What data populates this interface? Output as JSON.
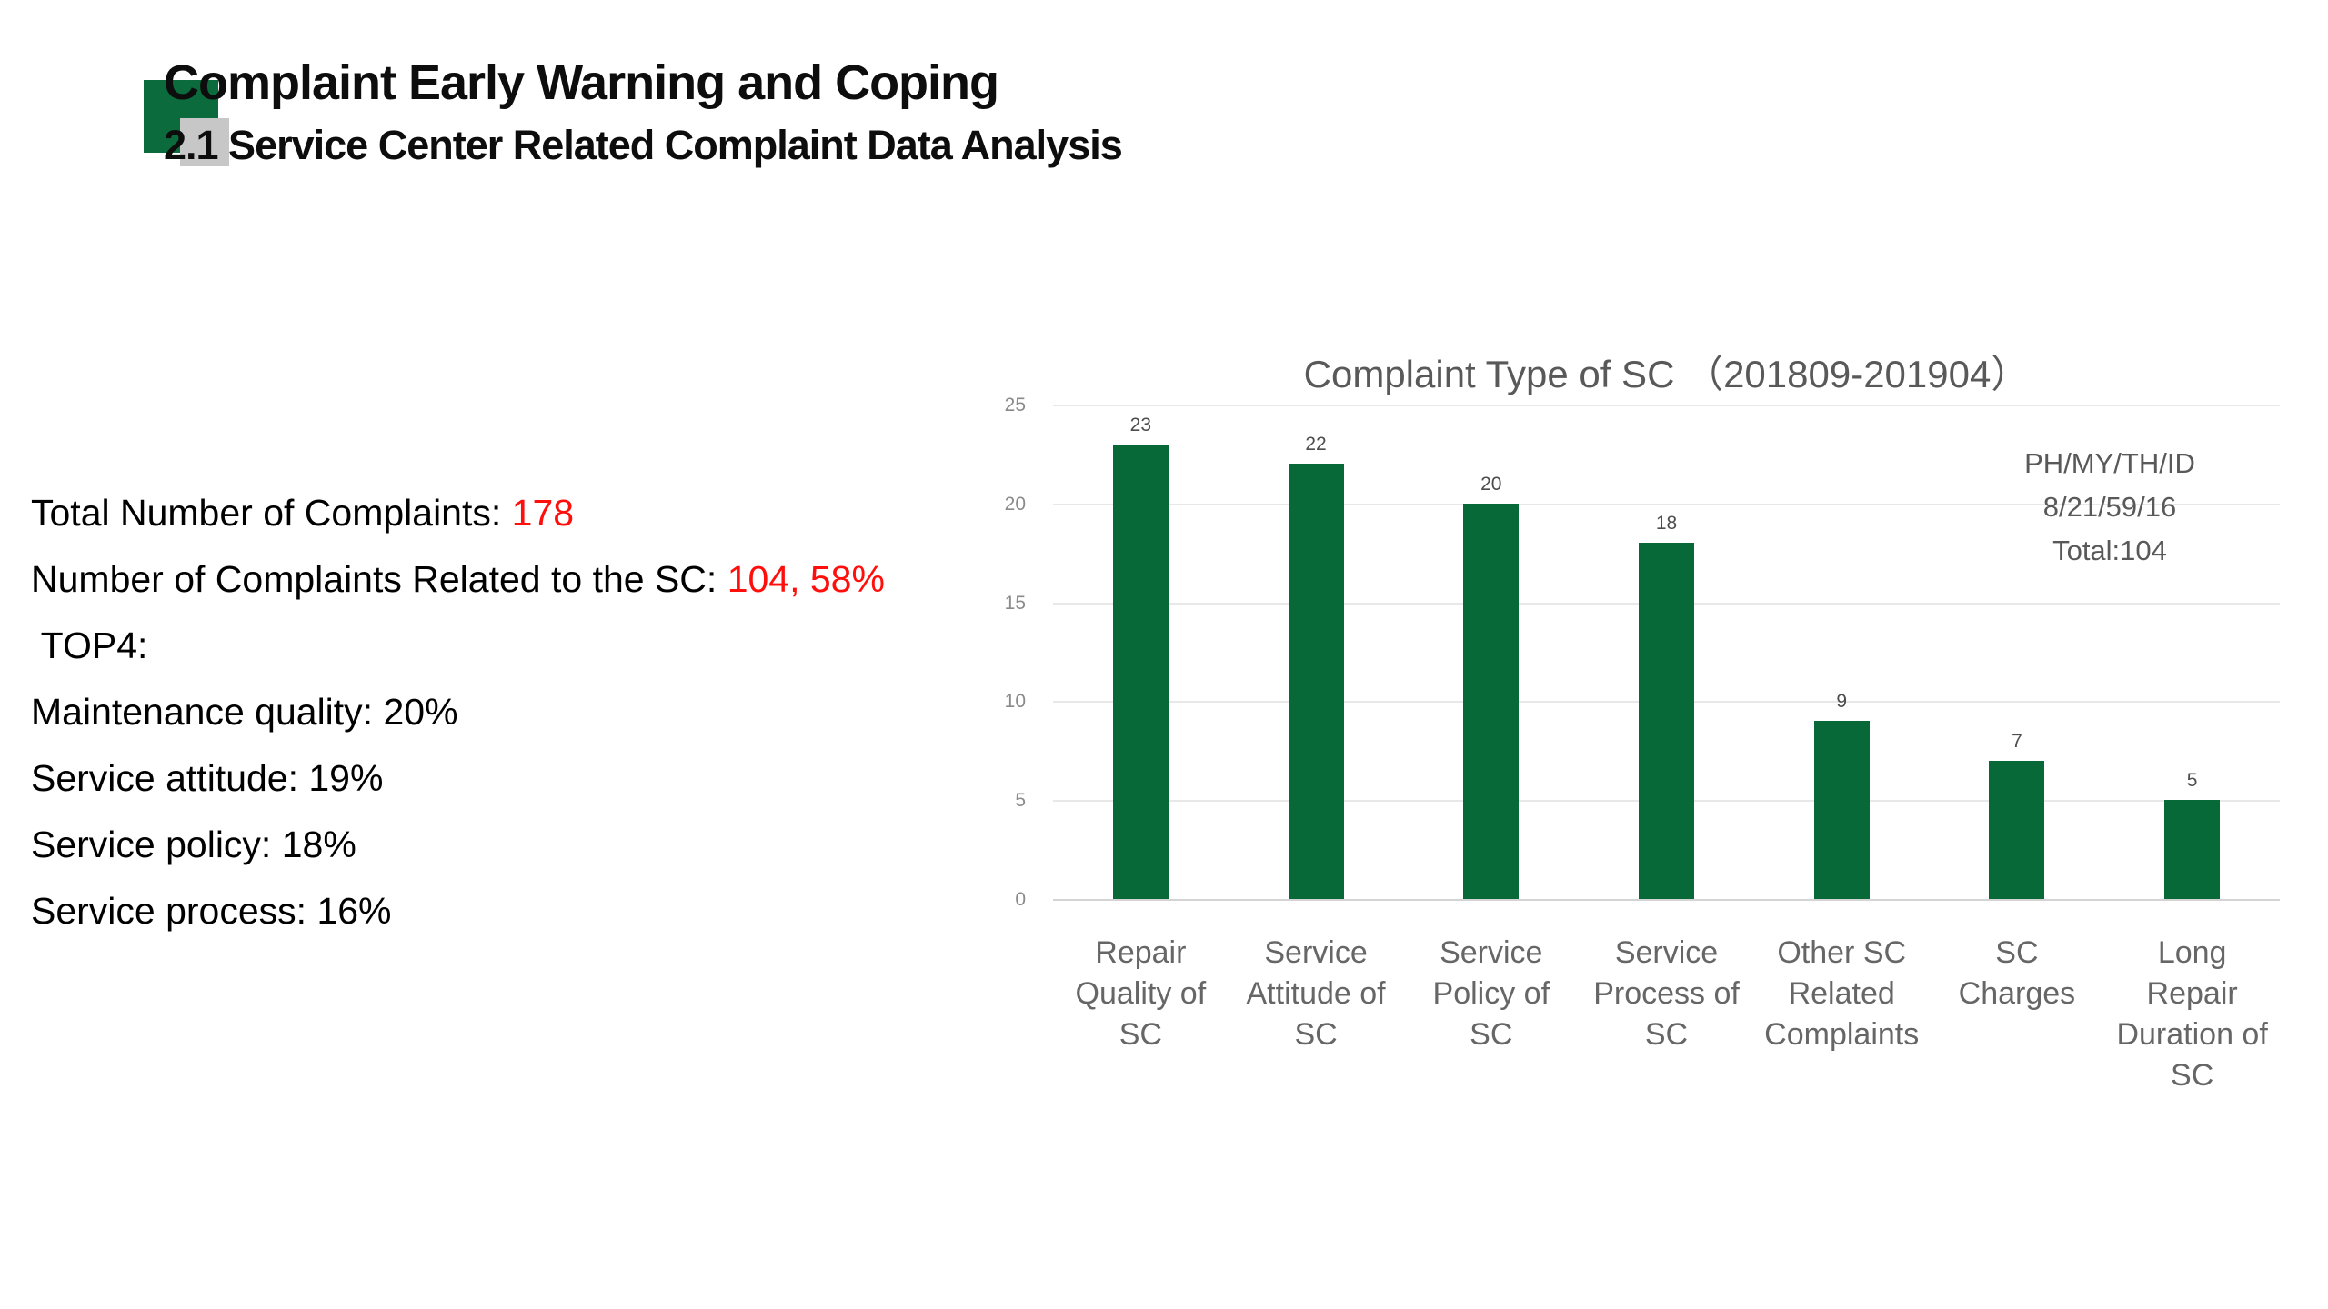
{
  "header": {
    "title": "Complaint Early Warning and Coping",
    "subtitle": "2.1 Service Center Related Complaint Data Analysis"
  },
  "stats": {
    "lines": [
      {
        "label": "Total Number of Complaints: ",
        "value": "178"
      },
      {
        "label": "Number of Complaints Related to the SC: ",
        "value": "104, 58%"
      },
      {
        "label": " TOP4:",
        "value": ""
      },
      {
        "label": "Maintenance quality: 20%",
        "value": ""
      },
      {
        "label": "Service attitude: 19%",
        "value": ""
      },
      {
        "label": "Service policy: 18%",
        "value": ""
      },
      {
        "label": "Service process: 16%",
        "value": ""
      }
    ]
  },
  "chart_data": {
    "type": "bar",
    "title": "Complaint Type of SC （201809-201904）",
    "categories": [
      "Repair Quality of SC",
      "Service Attitude of SC",
      "Service Policy of SC",
      "Service Process of SC",
      "Other SC Related Complaints",
      "SC Charges",
      "Long Repair Duration of SC"
    ],
    "category_lines": [
      [
        "Repair",
        "Quality of",
        "SC"
      ],
      [
        "Service",
        "Attitude of",
        "SC"
      ],
      [
        "Service",
        "Policy of",
        "SC"
      ],
      [
        "Service",
        "Process of",
        "SC"
      ],
      [
        "Other SC",
        "Related",
        "Complaints"
      ],
      [
        "SC",
        "Charges"
      ],
      [
        "Long",
        "Repair",
        "Duration of",
        "SC"
      ]
    ],
    "values": [
      23,
      22,
      20,
      18,
      9,
      7,
      5
    ],
    "ylim": [
      0,
      25
    ],
    "yticks": [
      0,
      5,
      10,
      15,
      20,
      25
    ],
    "grid": true,
    "legend": null,
    "annotation": [
      "PH/MY/TH/ID",
      "8/21/59/16",
      "Total:104"
    ],
    "bar_color": "#066937"
  },
  "colors": {
    "logo_green": "#0b6b3c",
    "logo_gray": "#c7c7c7",
    "bar_green": "#066937",
    "highlight_red": "#ff0f0c",
    "chart_text_gray": "#595959"
  }
}
